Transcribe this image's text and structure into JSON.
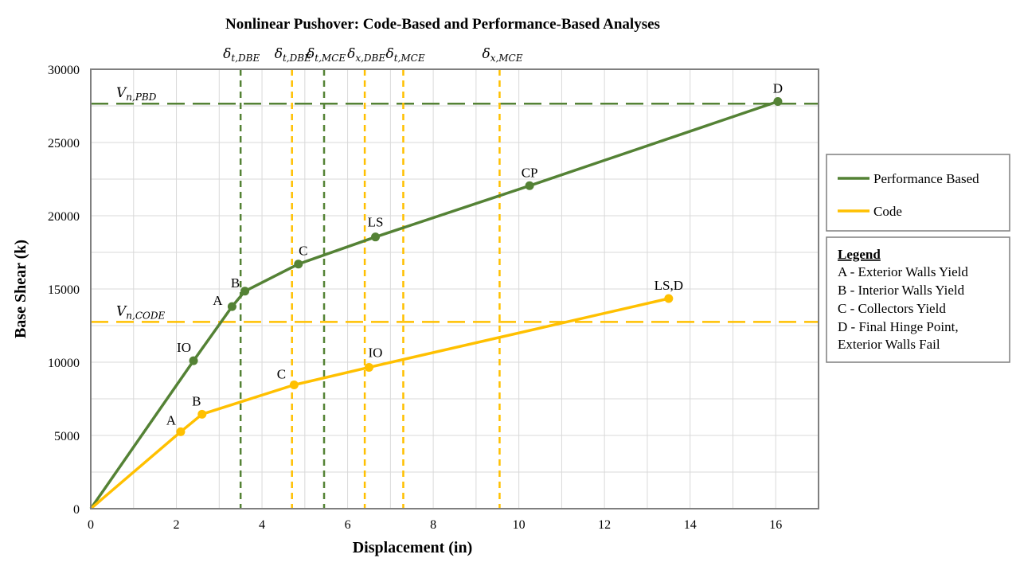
{
  "chart_data": {
    "type": "line",
    "title": "Nonlinear Pushover: Code-Based and Performance-Based Analyses",
    "xlabel": "Displacement (in)",
    "ylabel": "Base Shear (k)",
    "xlim": [
      0,
      17
    ],
    "ylim": [
      0,
      30000
    ],
    "xticks": [
      "0",
      "2",
      "4",
      "6",
      "8",
      "10",
      "12",
      "14",
      "16"
    ],
    "yticks": [
      "0",
      "5000",
      "10000",
      "15000",
      "20000",
      "25000",
      "30000"
    ],
    "grid": true,
    "colors": {
      "performance": "#548235",
      "code": "#FFC000",
      "grid": "#d9d9d9",
      "frame": "#7f7f7f"
    },
    "series": [
      {
        "name": "Performance Based",
        "color_key": "performance",
        "points": [
          {
            "x": 0,
            "y": 0,
            "label": ""
          },
          {
            "x": 2.4,
            "y": 10100,
            "label": "IO"
          },
          {
            "x": 3.3,
            "y": 13800,
            "label": "A"
          },
          {
            "x": 3.6,
            "y": 14850,
            "label": "B"
          },
          {
            "x": 4.85,
            "y": 16700,
            "label": "C"
          },
          {
            "x": 6.65,
            "y": 18550,
            "label": "LS"
          },
          {
            "x": 10.25,
            "y": 22050,
            "label": "CP"
          },
          {
            "x": 16.05,
            "y": 27800,
            "label": "D"
          }
        ]
      },
      {
        "name": "Code",
        "color_key": "code",
        "points": [
          {
            "x": 0,
            "y": 0,
            "label": ""
          },
          {
            "x": 2.1,
            "y": 5250,
            "label": "A"
          },
          {
            "x": 2.6,
            "y": 6450,
            "label": "B"
          },
          {
            "x": 4.75,
            "y": 8450,
            "label": "C"
          },
          {
            "x": 6.5,
            "y": 9650,
            "label": "IO"
          },
          {
            "x": 13.5,
            "y": 14350,
            "label": "LS,D"
          }
        ]
      }
    ],
    "reference_lines": {
      "horizontal": [
        {
          "y": 27650,
          "color_key": "performance",
          "label": "V",
          "subscript": "n,PBD"
        },
        {
          "y": 12750,
          "color_key": "code",
          "label": "V",
          "subscript": "n,CODE"
        }
      ],
      "vertical": [
        {
          "x": 3.5,
          "color_key": "performance",
          "label": "δ",
          "subscript": "t,DBE"
        },
        {
          "x": 4.7,
          "color_key": "code",
          "label": "δ",
          "subscript": "t,DBE"
        },
        {
          "x": 5.45,
          "color_key": "performance",
          "label": "δ",
          "subscript": "t,MCE"
        },
        {
          "x": 6.4,
          "color_key": "code",
          "label": "δ",
          "subscript": "x,DBE"
        },
        {
          "x": 7.3,
          "color_key": "code",
          "label": "δ",
          "subscript": "t,MCE"
        },
        {
          "x": 9.55,
          "color_key": "code",
          "label": "δ",
          "subscript": "x,MCE"
        }
      ]
    },
    "legend": {
      "placement": "right",
      "entries": [
        {
          "label": "Performance Based",
          "color_key": "performance"
        },
        {
          "label": "Code",
          "color_key": "code"
        }
      ]
    },
    "annotation_legend": {
      "title": "Legend",
      "lines": [
        "A - Exterior Walls Yield",
        "B - Interior Walls Yield",
        "C - Collectors Yield",
        "D - Final Hinge Point,",
        "Exterior Walls Fail"
      ]
    }
  }
}
